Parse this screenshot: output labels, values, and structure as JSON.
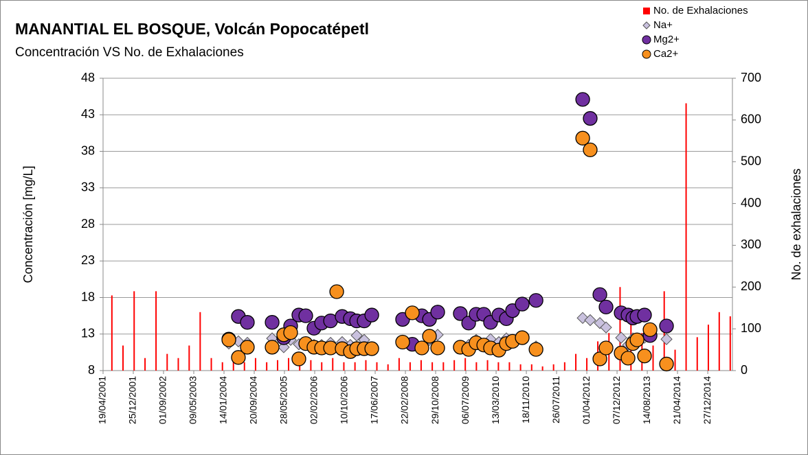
{
  "chart_data": {
    "type": "scatter",
    "title": "MANANTIAL EL BOSQUE, Volcán Popocatépetl",
    "subtitle": "Concentración VS No. de Exhalaciones",
    "ylabel": "Concentración  [mg/L]",
    "y2label": "No. de exhalaciones",
    "xlim": [
      "19/04/2001",
      "19/07/2015"
    ],
    "xticks": [
      "19/04/2001",
      "25/12/2001",
      "01/09/2002",
      "09/05/2003",
      "14/01/2004",
      "20/09/2004",
      "28/05/2005",
      "02/02/2006",
      "10/10/2006",
      "17/06/2007",
      "22/02/2008",
      "29/10/2008",
      "06/07/2009",
      "13/03/2010",
      "18/11/2010",
      "26/07/2011",
      "01/04/2012",
      "07/12/2012",
      "14/08/2013",
      "21/04/2014",
      "27/12/2014"
    ],
    "ylim": [
      8,
      48
    ],
    "yticks": [
      8,
      13,
      18,
      23,
      28,
      33,
      38,
      43,
      48
    ],
    "y2lim": [
      0,
      700
    ],
    "y2ticks": [
      0,
      100,
      200,
      300,
      400,
      500,
      600,
      700
    ],
    "grid": true,
    "legend": "upper right",
    "x": [
      "23/02/2004",
      "12/05/2004",
      "25/07/2004",
      "15/02/2005",
      "22/05/2005",
      "18/07/2005",
      "24/09/2005",
      "20/11/2005",
      "27/01/2006",
      "31/03/2006",
      "13/06/2006",
      "03/08/2006",
      "17/09/2006",
      "24/11/2006",
      "15/01/2007",
      "18/03/2007",
      "20/05/2007",
      "30/01/2008",
      "19/04/2008",
      "07/07/2008",
      "08/09/2008",
      "15/11/2008",
      "21/05/2009",
      "29/07/2009",
      "29/09/2009",
      "01/12/2009",
      "26/01/2010",
      "05/04/2010",
      "06/06/2010",
      "27/07/2010",
      "15/10/2010",
      "06/02/2011",
      "27/02/2012",
      "29/04/2012",
      "18/07/2012",
      "07/09/2012",
      "10/01/2013",
      "08/03/2013",
      "17/04/2013",
      "21/05/2013",
      "22/07/2013",
      "06/09/2013",
      "20/01/2014"
    ],
    "series": [
      {
        "name": "No. de Exhalaciones",
        "color": "#ff0000",
        "marker": "bar",
        "axis": "y2",
        "x": [
          "01/07/2001",
          "01/10/2001",
          "01/01/2002",
          "01/04/2002",
          "01/07/2002",
          "01/10/2002",
          "01/01/2003",
          "01/04/2003",
          "01/07/2003",
          "01/10/2003",
          "01/01/2004",
          "01/04/2004",
          "01/07/2004",
          "01/10/2004",
          "01/01/2005",
          "01/04/2005",
          "01/07/2005",
          "01/10/2005",
          "01/01/2006",
          "01/04/2006",
          "01/07/2006",
          "01/10/2006",
          "01/01/2007",
          "01/04/2007",
          "01/07/2007",
          "01/10/2007",
          "01/01/2008",
          "01/04/2008",
          "01/07/2008",
          "01/10/2008",
          "01/01/2009",
          "01/04/2009",
          "01/07/2009",
          "01/10/2009",
          "01/01/2010",
          "01/04/2010",
          "01/07/2010",
          "01/10/2010",
          "01/01/2011",
          "01/04/2011",
          "01/07/2011",
          "01/10/2011",
          "01/01/2012",
          "01/04/2012",
          "01/07/2012",
          "01/10/2012",
          "01/01/2013",
          "01/04/2013",
          "01/07/2013",
          "01/10/2013",
          "01/01/2014",
          "01/04/2014",
          "01/07/2014",
          "01/10/2014",
          "01/01/2015",
          "01/04/2015",
          "01/07/2015"
        ],
        "values": [
          180,
          60,
          190,
          30,
          190,
          40,
          30,
          60,
          140,
          30,
          20,
          30,
          20,
          30,
          20,
          25,
          30,
          20,
          25,
          20,
          30,
          20,
          20,
          25,
          20,
          15,
          30,
          20,
          25,
          20,
          20,
          25,
          30,
          20,
          25,
          20,
          20,
          15,
          15,
          10,
          15,
          20,
          40,
          30,
          70,
          90,
          200,
          120,
          90,
          60,
          190,
          50,
          640,
          80,
          110,
          140,
          130
        ]
      },
      {
        "name": "Na+",
        "color": "#c9c1de",
        "marker": "diamond",
        "values": [
          11.7,
          12,
          11.8,
          12.4,
          11.2,
          12.2,
          11.6,
          11.8,
          11.5,
          11.5,
          11.8,
          null,
          11.9,
          11.5,
          12.8,
          12.2,
          null,
          11.9,
          11.6,
          11.3,
          12.2,
          12.9,
          null,
          11.5,
          12.2,
          11.6,
          12.3,
          11.9,
          12.4,
          12,
          12.4,
          11.3,
          15.2,
          14.9,
          14.5,
          13.9,
          12.5,
          11.5,
          12.4,
          11.8,
          12.5,
          null,
          12.3
        ]
      },
      {
        "name": "Mg2+",
        "color": "#7030a0",
        "marker": "circle",
        "values": [
          12.3,
          15.4,
          14.6,
          14.6,
          12.5,
          14.1,
          15.6,
          15.5,
          13.8,
          14.5,
          14.8,
          null,
          15.4,
          15.1,
          14.8,
          14.8,
          15.6,
          15,
          11.6,
          15.5,
          15,
          16,
          15.8,
          14.5,
          15.7,
          15.7,
          14.6,
          15.6,
          15.1,
          16.2,
          17.1,
          17.6,
          45.1,
          42.5,
          18.4,
          16.7,
          15.9,
          15.6,
          15.2,
          15.4,
          15.6,
          12.8,
          14.1
        ]
      },
      {
        "name": "Ca2+",
        "color": "#f7901e",
        "marker": "circle",
        "values": [
          12.2,
          9.8,
          11.2,
          11.2,
          12.9,
          13.2,
          9.6,
          11.7,
          11.2,
          11.1,
          11.1,
          18.8,
          11,
          10.6,
          11,
          11,
          11,
          11.9,
          15.9,
          11.1,
          12.7,
          11.1,
          11.2,
          10.9,
          11.8,
          11.5,
          11.1,
          10.8,
          11.7,
          12,
          12.5,
          10.9,
          39.8,
          38.2,
          9.6,
          11.1,
          10.4,
          9.7,
          11.7,
          12.2,
          10,
          13.6,
          8.9
        ]
      }
    ]
  }
}
